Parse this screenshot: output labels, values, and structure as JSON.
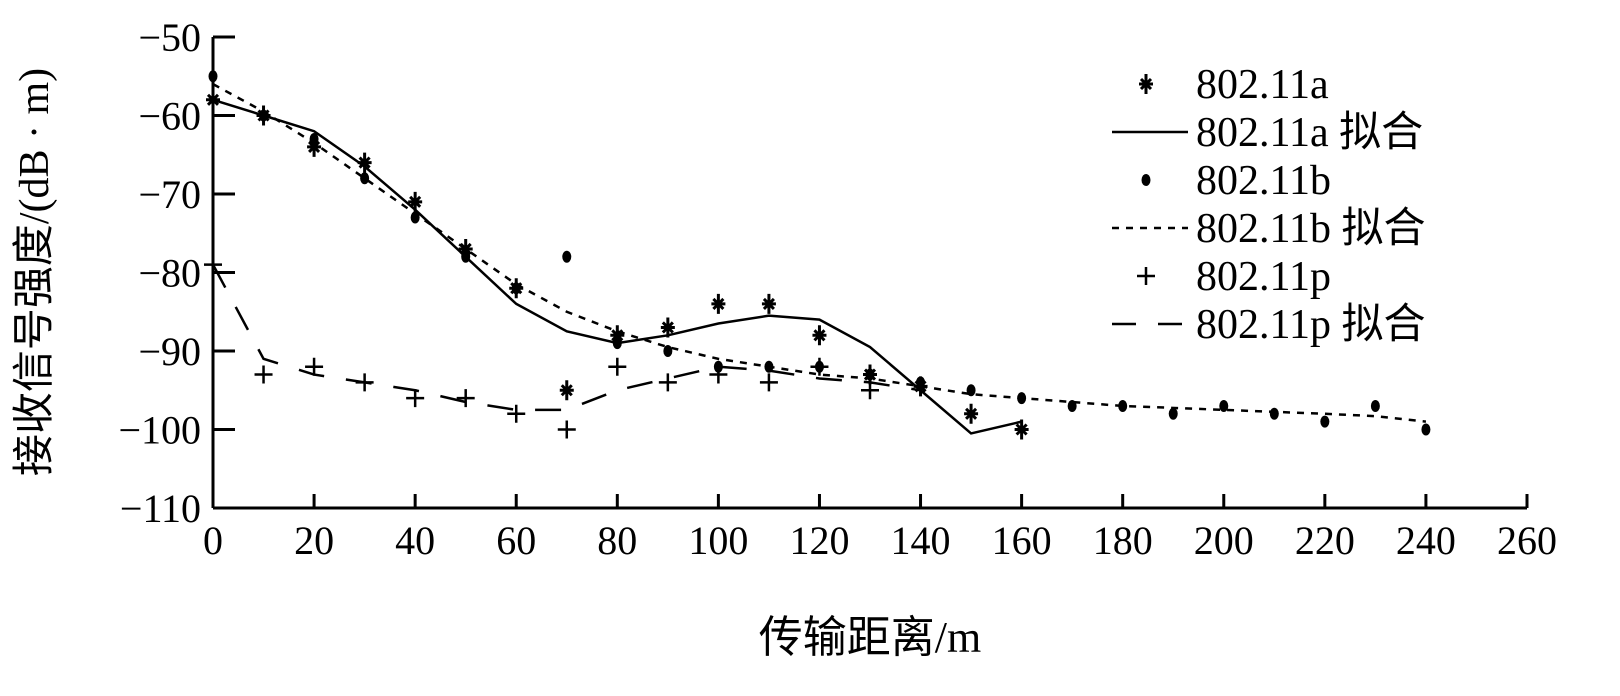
{
  "chart_data": {
    "type": "line",
    "title": "",
    "xlabel": "传输距离/m",
    "ylabel": "接收信号强度/(dB · m)",
    "xlim": [
      0,
      260
    ],
    "ylim": [
      -110,
      -50
    ],
    "xticks": [
      0,
      20,
      40,
      60,
      80,
      100,
      120,
      140,
      160,
      180,
      200,
      220,
      240,
      260
    ],
    "yticks": [
      -50,
      -60,
      -70,
      -80,
      -90,
      -100,
      -110
    ],
    "xtick_labels": [
      "0",
      "20",
      "40",
      "60",
      "80",
      "100",
      "120",
      "140",
      "160",
      "180",
      "200",
      "220",
      "240",
      "260"
    ],
    "ytick_labels": [
      "−50",
      "−60",
      "−70",
      "−80",
      "−90",
      "−100",
      "−110"
    ],
    "grid": false,
    "legend_position": "top-right",
    "series": [
      {
        "name": "802.11a",
        "kind": "scatter",
        "marker": "star",
        "x": [
          0,
          10,
          20,
          30,
          40,
          50,
          60,
          70,
          80,
          90,
          100,
          110,
          120,
          130,
          140,
          150,
          160
        ],
        "y": [
          -58,
          -60,
          -64,
          -66,
          -71,
          -77,
          -82,
          -95,
          -88,
          -87,
          -84,
          -84,
          -88,
          -93,
          -94.5,
          -98,
          -100
        ]
      },
      {
        "name": "802.11a 拟合",
        "kind": "line",
        "style": "solid",
        "x": [
          0,
          10,
          20,
          30,
          40,
          50,
          60,
          70,
          80,
          90,
          100,
          110,
          120,
          130,
          140,
          150,
          160
        ],
        "y": [
          -58,
          -60,
          -62,
          -66.5,
          -72,
          -78,
          -84,
          -87.5,
          -89,
          -88,
          -86.5,
          -85.5,
          -86,
          -89.5,
          -95,
          -100.5,
          -99
        ]
      },
      {
        "name": "802.11b",
        "kind": "scatter",
        "marker": "dot",
        "x": [
          0,
          10,
          20,
          30,
          40,
          50,
          60,
          70,
          80,
          90,
          100,
          110,
          120,
          130,
          140,
          150,
          160,
          170,
          180,
          190,
          200,
          210,
          220,
          230,
          240
        ],
        "y": [
          -55,
          -60,
          -63,
          -68,
          -73,
          -78,
          -82,
          -78,
          -89,
          -90,
          -92,
          -92,
          -92,
          -93,
          -94,
          -95,
          -96,
          -97,
          -97,
          -98,
          -97,
          -98,
          -99,
          -97,
          -100
        ]
      },
      {
        "name": "802.11b 拟合",
        "kind": "line",
        "style": "dotted",
        "x": [
          0,
          10,
          20,
          30,
          40,
          50,
          60,
          70,
          80,
          90,
          100,
          110,
          120,
          130,
          140,
          150,
          160,
          180,
          200,
          220,
          230,
          240
        ],
        "y": [
          -56,
          -59.5,
          -63.5,
          -68,
          -72.5,
          -77,
          -81.5,
          -85,
          -87.5,
          -89.5,
          -91,
          -92,
          -93,
          -93.5,
          -94.5,
          -95.5,
          -96,
          -97,
          -97.5,
          -98,
          -98.3,
          -99
        ]
      },
      {
        "name": "802.11p",
        "kind": "scatter",
        "marker": "plus",
        "x": [
          0,
          10,
          20,
          30,
          40,
          50,
          60,
          70,
          80,
          90,
          100,
          110,
          120,
          130
        ],
        "y": [
          -79,
          -93,
          -92,
          -94,
          -96,
          -96,
          -98,
          -100,
          -92,
          -94,
          -93,
          -94,
          -92,
          -95
        ]
      },
      {
        "name": "802.11p 拟合",
        "kind": "line",
        "style": "dashed",
        "x": [
          0,
          10,
          20,
          30,
          40,
          50,
          60,
          70,
          80,
          90,
          100,
          110,
          120,
          130,
          140
        ],
        "y": [
          -79,
          -91,
          -93,
          -94,
          -95,
          -96.5,
          -97.5,
          -97.5,
          -95,
          -93.5,
          -92,
          -92.5,
          -93.5,
          -94,
          -95
        ]
      }
    ]
  }
}
